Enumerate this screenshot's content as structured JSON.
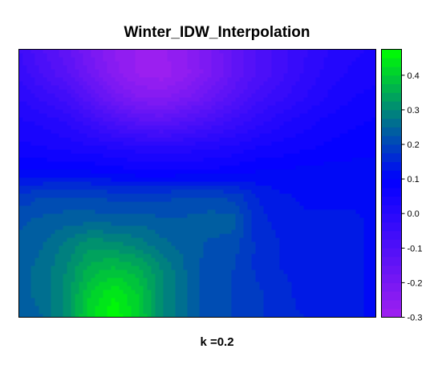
{
  "chart_data": {
    "type": "heatmap",
    "title": "Winter_IDW_Interpolation",
    "subtitle": "k =0.2",
    "xlabel": "",
    "ylabel": "",
    "legend": {
      "placement": "right",
      "range": [
        -0.3,
        0.475
      ],
      "ticks": [
        {
          "value": -0.3,
          "label": "-0.3"
        },
        {
          "value": -0.2,
          "label": "-0.2"
        },
        {
          "value": -0.1,
          "label": "-0.1"
        },
        {
          "value": 0.0,
          "label": "0.0"
        },
        {
          "value": 0.1,
          "label": "0.1"
        },
        {
          "value": 0.2,
          "label": "0.2"
        },
        {
          "value": 0.3,
          "label": "0.3"
        },
        {
          "value": 0.4,
          "label": "0.4"
        }
      ],
      "color_stops": [
        {
          "value": -0.3,
          "color": "#a020f0"
        },
        {
          "value": 0.1,
          "color": "#0000ff"
        },
        {
          "value": 0.475,
          "color": "#00ff00"
        }
      ],
      "bin_width": 0.025
    },
    "field": {
      "description_of_values": "interpolated values over the grid, read from color",
      "rows": 12,
      "cols": 16,
      "values": [
        [
          -0.05,
          -0.1,
          -0.14,
          -0.2,
          -0.25,
          -0.28,
          -0.28,
          -0.25,
          -0.2,
          -0.15,
          -0.1,
          -0.06,
          -0.03,
          0.0,
          0.02,
          0.03
        ],
        [
          -0.03,
          -0.08,
          -0.12,
          -0.18,
          -0.24,
          -0.28,
          -0.29,
          -0.26,
          -0.21,
          -0.15,
          -0.1,
          -0.06,
          -0.02,
          0.01,
          0.03,
          0.04
        ],
        [
          0.0,
          -0.03,
          -0.06,
          -0.12,
          -0.18,
          -0.22,
          -0.23,
          -0.2,
          -0.16,
          -0.11,
          -0.06,
          -0.03,
          0.0,
          0.03,
          0.05,
          0.06
        ],
        [
          0.03,
          0.02,
          0.0,
          -0.04,
          -0.08,
          -0.11,
          -0.12,
          -0.1,
          -0.07,
          -0.04,
          -0.01,
          0.02,
          0.04,
          0.06,
          0.07,
          0.08
        ],
        [
          0.06,
          0.05,
          0.04,
          0.03,
          0.02,
          0.01,
          0.0,
          0.01,
          0.02,
          0.03,
          0.05,
          0.06,
          0.07,
          0.08,
          0.09,
          0.09
        ],
        [
          0.1,
          0.1,
          0.1,
          0.1,
          0.09,
          0.08,
          0.08,
          0.08,
          0.08,
          0.09,
          0.1,
          0.1,
          0.11,
          0.11,
          0.11,
          0.11
        ],
        [
          0.18,
          0.2,
          0.2,
          0.2,
          0.19,
          0.19,
          0.19,
          0.2,
          0.2,
          0.19,
          0.15,
          0.13,
          0.12,
          0.12,
          0.12,
          0.12
        ],
        [
          0.22,
          0.23,
          0.24,
          0.24,
          0.24,
          0.24,
          0.23,
          0.23,
          0.24,
          0.24,
          0.16,
          0.14,
          0.13,
          0.13,
          0.13,
          0.12
        ],
        [
          0.23,
          0.25,
          0.28,
          0.32,
          0.31,
          0.29,
          0.26,
          0.24,
          0.22,
          0.21,
          0.17,
          0.15,
          0.14,
          0.13,
          0.13,
          0.12
        ],
        [
          0.24,
          0.26,
          0.3,
          0.36,
          0.38,
          0.36,
          0.3,
          0.25,
          0.21,
          0.2,
          0.17,
          0.15,
          0.14,
          0.14,
          0.13,
          0.12
        ],
        [
          0.24,
          0.26,
          0.31,
          0.4,
          0.45,
          0.4,
          0.3,
          0.25,
          0.21,
          0.2,
          0.18,
          0.16,
          0.14,
          0.14,
          0.13,
          0.12
        ],
        [
          0.23,
          0.25,
          0.31,
          0.42,
          0.47,
          0.41,
          0.3,
          0.25,
          0.21,
          0.2,
          0.18,
          0.16,
          0.15,
          0.14,
          0.13,
          0.12
        ]
      ]
    }
  }
}
